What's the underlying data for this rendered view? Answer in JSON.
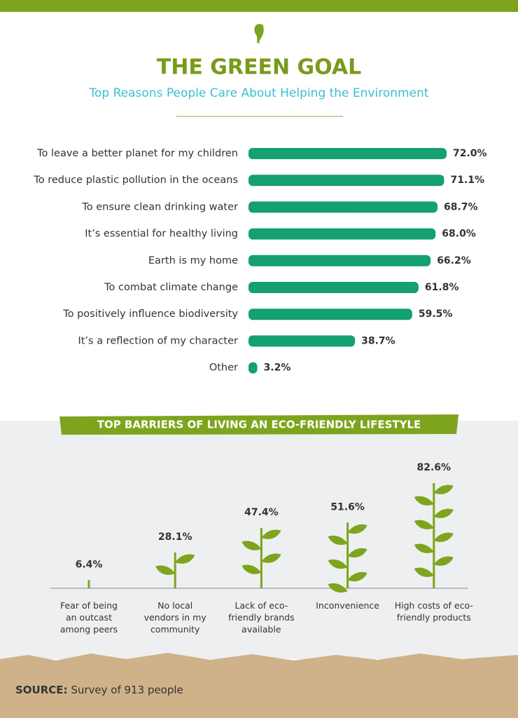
{
  "header": {
    "title": "THE GREEN GOAL",
    "subtitle": "Top Reasons People Care About Helping the Environment"
  },
  "chart_data": [
    {
      "type": "hbar",
      "color": "#14a06f",
      "categories": [
        "To leave a better planet for my children",
        "To reduce plastic pollution in the oceans",
        "To ensure clean drinking water",
        "It’s essential for healthy living",
        "Earth is my home",
        "To combat climate change",
        "To positively influence biodiversity",
        "It’s a reflection of my character",
        "Other"
      ],
      "values": [
        72.0,
        71.1,
        68.7,
        68.0,
        66.2,
        61.8,
        59.5,
        38.7,
        3.2
      ],
      "value_labels": [
        "72.0%",
        "71.1%",
        "68.7%",
        "68.0%",
        "66.2%",
        "61.8%",
        "59.5%",
        "38.7%",
        "3.2%"
      ]
    },
    {
      "type": "plant",
      "title": "TOP BARRIERS OF LIVING AN ECO-FRIENDLY LIFESTYLE",
      "color": "#7ea41d",
      "categories": [
        "Fear of being an outcast among peers",
        "No local vendors in my community",
        "Lack of eco-friendly brands available",
        "Inconvenience",
        "High costs of eco-friendly products"
      ],
      "values": [
        6.4,
        28.1,
        47.4,
        51.6,
        82.6
      ],
      "value_labels": [
        "6.4%",
        "28.1%",
        "47.4%",
        "51.6%",
        "82.6%"
      ]
    }
  ],
  "source": {
    "label": "SOURCE:",
    "text": "Survey of 913 people"
  }
}
